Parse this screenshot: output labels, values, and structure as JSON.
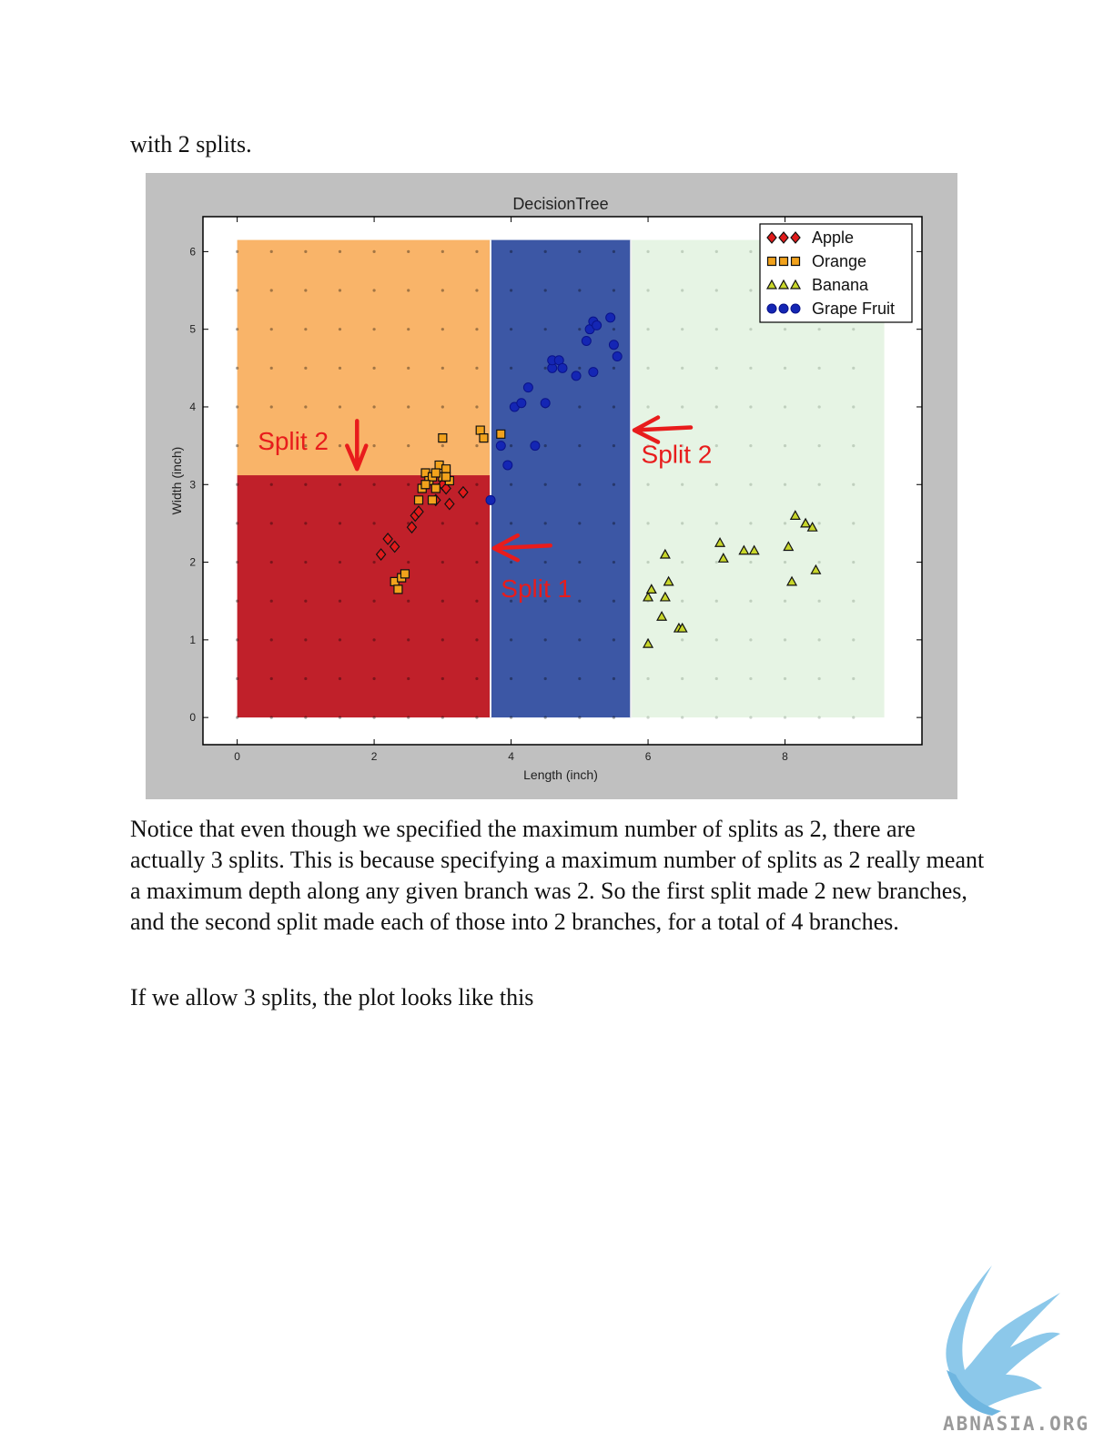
{
  "document": {
    "intro_text": "with 2 splits.",
    "paragraph_1": "Notice that even though we specified the maximum number of splits as 2, there are actually 3 splits.  This is because specifying a maximum number of splits as 2 really meant a maximum depth along any given branch was 2.  So the first split made 2 new branches, and the second split made each of those into 2 branches, for a total of 4 branches.",
    "paragraph_2": "If we allow 3 splits, the plot looks like this"
  },
  "logo": {
    "text": "ABNASIA.ORG",
    "color": "#7fc1e6"
  },
  "chart_data": {
    "type": "scatter",
    "title": "DecisionTree",
    "xlabel": "Length (inch)",
    "ylabel": "Width (inch)",
    "xlim": [
      -0.5,
      10
    ],
    "ylim": [
      -0.35,
      6.45
    ],
    "xticks": [
      0,
      2,
      4,
      6,
      8
    ],
    "yticks": [
      0,
      1,
      2,
      3,
      4,
      5,
      6
    ],
    "regions": [
      {
        "class": "Apple",
        "x": [
          0,
          3.7
        ],
        "y": [
          0,
          3.12
        ],
        "color": "#c0202a"
      },
      {
        "class": "Orange",
        "x": [
          0,
          3.7
        ],
        "y": [
          3.12,
          6.15
        ],
        "color": "#f9b469"
      },
      {
        "class": "Grape Fruit",
        "x": [
          3.7,
          5.75
        ],
        "y": [
          0,
          6.15
        ],
        "color": "#3c57a5"
      },
      {
        "class": "Banana",
        "x": [
          5.75,
          9.45
        ],
        "y": [
          0,
          6.15
        ],
        "color": "#e6f4e4"
      }
    ],
    "legend": {
      "position": "top-right",
      "entries": [
        "Apple",
        "Orange",
        "Banana",
        "Grape Fruit"
      ]
    },
    "annotations": [
      {
        "text": "Split 2",
        "x": 0.3,
        "y": 3.45,
        "arrow": "down",
        "arrow_x": 1.75
      },
      {
        "text": "Split 2",
        "x": 5.9,
        "y": 3.28,
        "arrow": "left",
        "arrow_x": 5.8,
        "arrow_y": 3.7
      },
      {
        "text": "Split 1",
        "x": 3.85,
        "y": 1.55,
        "arrow": "left",
        "arrow_x": 3.75,
        "arrow_y": 2.18
      }
    ],
    "series": [
      {
        "name": "Apple",
        "marker": "diamond",
        "color": "#e01b1b",
        "x": [
          2.1,
          2.2,
          2.3,
          2.55,
          2.6,
          2.65,
          2.9,
          3.0,
          3.05,
          3.3,
          3.1
        ],
        "y": [
          2.1,
          2.3,
          2.2,
          2.45,
          2.6,
          2.65,
          2.8,
          3.0,
          2.95,
          2.9,
          2.75
        ]
      },
      {
        "name": "Orange",
        "marker": "square",
        "color": "#f2a21c",
        "x": [
          2.3,
          2.35,
          2.4,
          2.45,
          2.65,
          2.7,
          2.75,
          2.8,
          2.85,
          2.9,
          2.95,
          3.0,
          3.05,
          3.1,
          3.0,
          2.85,
          3.55,
          3.6,
          3.85,
          2.75,
          2.9,
          3.05
        ],
        "y": [
          1.75,
          1.65,
          1.8,
          1.85,
          2.8,
          2.95,
          3.15,
          3.05,
          3.1,
          2.95,
          3.25,
          3.6,
          3.2,
          3.05,
          3.1,
          2.8,
          3.7,
          3.6,
          3.65,
          3.0,
          3.15,
          3.1
        ],
        "note": "values estimated"
      },
      {
        "name": "Banana",
        "marker": "triangle",
        "color": "#c8d62a",
        "x": [
          6.0,
          6.0,
          6.05,
          6.2,
          6.25,
          6.25,
          6.3,
          6.45,
          6.5,
          7.05,
          7.1,
          7.4,
          7.55,
          8.05,
          8.1,
          8.15,
          8.3,
          8.4,
          8.45
        ],
        "y": [
          0.95,
          1.55,
          1.65,
          1.3,
          1.55,
          2.1,
          1.75,
          1.15,
          1.15,
          2.25,
          2.05,
          2.15,
          2.15,
          2.2,
          1.75,
          2.6,
          2.5,
          2.45,
          1.9
        ]
      },
      {
        "name": "Grape Fruit",
        "marker": "circle",
        "color": "#1426b4",
        "x": [
          3.7,
          3.95,
          3.85,
          4.05,
          4.15,
          4.25,
          4.35,
          4.5,
          4.6,
          4.6,
          4.7,
          4.75,
          4.95,
          5.1,
          5.15,
          5.2,
          5.2,
          5.25,
          5.45,
          5.5,
          5.55
        ],
        "y": [
          2.8,
          3.25,
          3.5,
          4.0,
          4.05,
          4.25,
          3.5,
          4.05,
          4.5,
          4.6,
          4.6,
          4.5,
          4.4,
          4.85,
          5.0,
          5.1,
          4.45,
          5.05,
          5.15,
          4.8,
          4.65
        ]
      }
    ]
  }
}
